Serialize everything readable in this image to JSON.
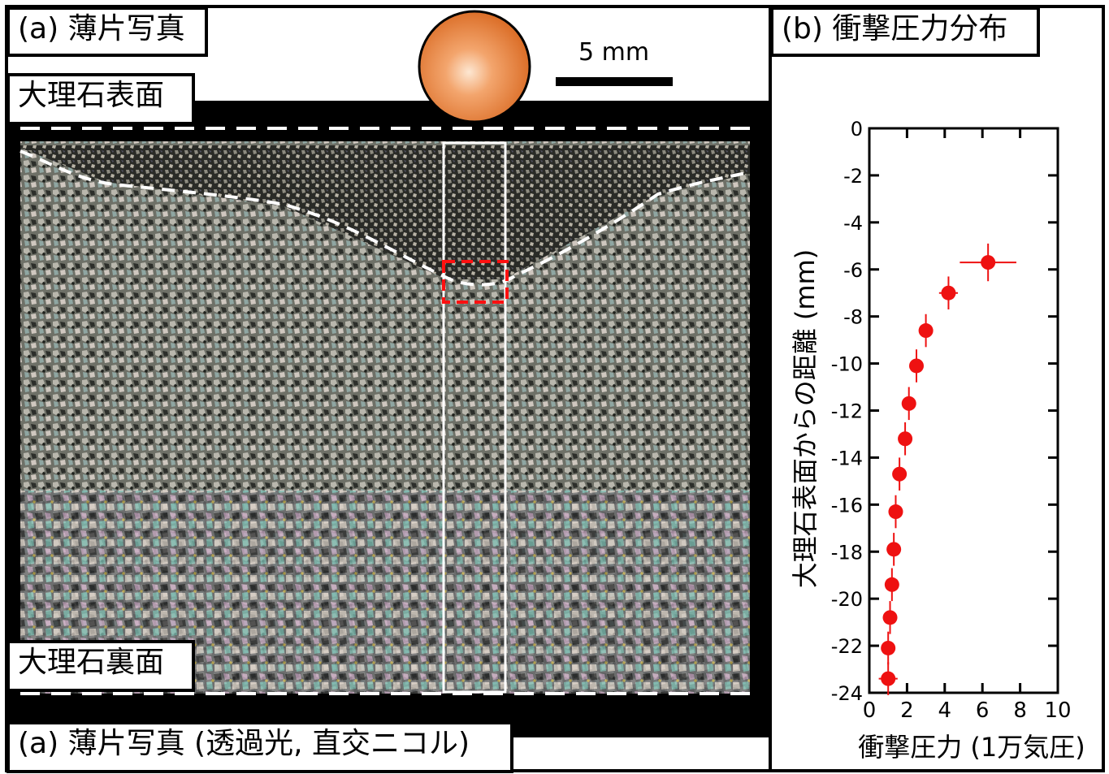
{
  "panel_a": {
    "title": "(a) 薄片写真",
    "caption": "(a) 薄片写真 (透過光, 直交ニコル)",
    "surface_label": "大理石表面",
    "back_label": "大理石裏面",
    "scale_label": "5 mm"
  },
  "panel_b": {
    "title": "(b) 衝撃圧力分布"
  },
  "chart_data": {
    "type": "scatter",
    "xlabel": "衝撃圧力 (1万気圧)",
    "ylabel": "大理石表面からの距離 (mm)",
    "xlim": [
      0,
      10
    ],
    "ylim": [
      -24,
      0
    ],
    "xticks": [
      "0",
      "2",
      "4",
      "6",
      "8",
      "10"
    ],
    "yticks": [
      "0",
      "-2",
      "-4",
      "-6",
      "-8",
      "-10",
      "-12",
      "-14",
      "-16",
      "-18",
      "-20",
      "-22",
      "-24"
    ],
    "series": [
      {
        "color": "#ee1111",
        "points": [
          {
            "x": 6.3,
            "y": -5.7,
            "xerr": 1.5,
            "yerr": 0.8
          },
          {
            "x": 4.2,
            "y": -7.0,
            "xerr": 0.5,
            "yerr": 0.7
          },
          {
            "x": 3.0,
            "y": -8.6,
            "xerr": 0.0,
            "yerr": 0.7
          },
          {
            "x": 2.5,
            "y": -10.1,
            "xerr": 0.0,
            "yerr": 0.7
          },
          {
            "x": 2.1,
            "y": -11.7,
            "xerr": 0.0,
            "yerr": 0.7
          },
          {
            "x": 1.9,
            "y": -13.2,
            "xerr": 0.0,
            "yerr": 0.7
          },
          {
            "x": 1.6,
            "y": -14.7,
            "xerr": 0.0,
            "yerr": 0.7
          },
          {
            "x": 1.4,
            "y": -16.3,
            "xerr": 0.0,
            "yerr": 0.7
          },
          {
            "x": 1.3,
            "y": -17.9,
            "xerr": 0.0,
            "yerr": 0.7
          },
          {
            "x": 1.2,
            "y": -19.4,
            "xerr": 0.0,
            "yerr": 0.7
          },
          {
            "x": 1.1,
            "y": -20.8,
            "xerr": 0.0,
            "yerr": 0.7
          },
          {
            "x": 1.0,
            "y": -22.1,
            "xerr": 0.0,
            "yerr": 0.7
          },
          {
            "x": 1.0,
            "y": -23.4,
            "xerr": 0.5,
            "yerr": 0.7
          }
        ]
      }
    ]
  }
}
